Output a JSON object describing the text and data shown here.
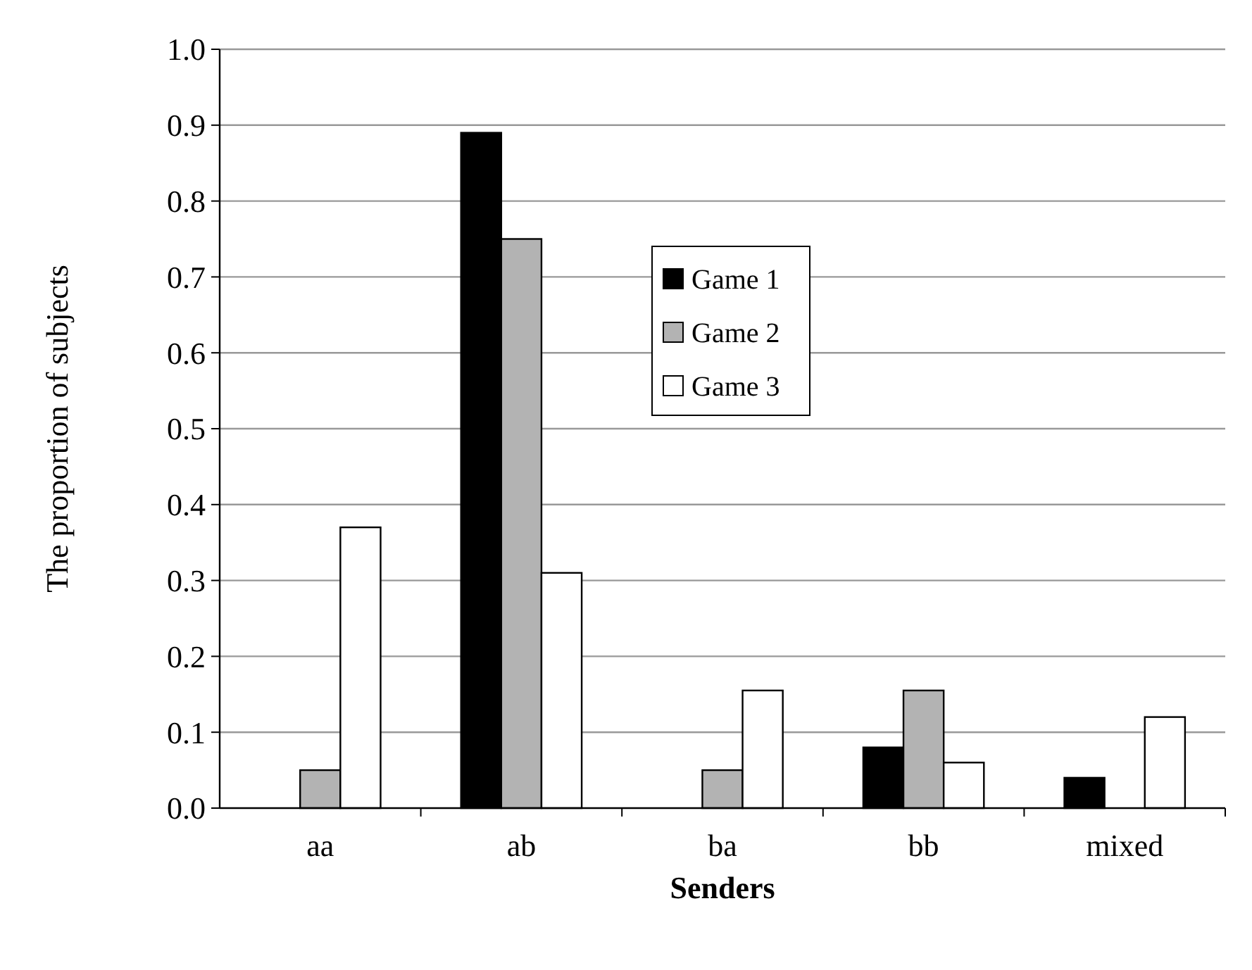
{
  "chart_data": {
    "type": "bar",
    "xlabel": "Senders",
    "ylabel": "The proportion of subjects",
    "categories": [
      "aa",
      "ab",
      "ba",
      "bb",
      "mixed"
    ],
    "series": [
      {
        "name": "Game 1",
        "color": "#000000",
        "values": [
          0,
          0.89,
          0,
          0.08,
          0.04
        ]
      },
      {
        "name": "Game 2",
        "color": "#b3b3b3",
        "values": [
          0.05,
          0.75,
          0.05,
          0.155,
          0
        ]
      },
      {
        "name": "Game 3",
        "color": "#ffffff",
        "values": [
          0.37,
          0.31,
          0.155,
          0.06,
          0.12
        ]
      }
    ],
    "ylim": [
      0,
      1
    ],
    "yticks": [
      {
        "value": 0,
        "label": "0.0"
      },
      {
        "value": 0.1,
        "label": "0.1"
      },
      {
        "value": 0.2,
        "label": "0.2"
      },
      {
        "value": 0.3,
        "label": "0.3"
      },
      {
        "value": 0.4,
        "label": "0.4"
      },
      {
        "value": 0.5,
        "label": "0.5"
      },
      {
        "value": 0.6,
        "label": "0.6"
      },
      {
        "value": 0.7,
        "label": "0.7"
      },
      {
        "value": 0.8,
        "label": "0.8"
      },
      {
        "value": 0.9,
        "label": "0.9"
      },
      {
        "value": 1,
        "label": "1.0"
      }
    ],
    "grid": "y",
    "legend": "top"
  }
}
